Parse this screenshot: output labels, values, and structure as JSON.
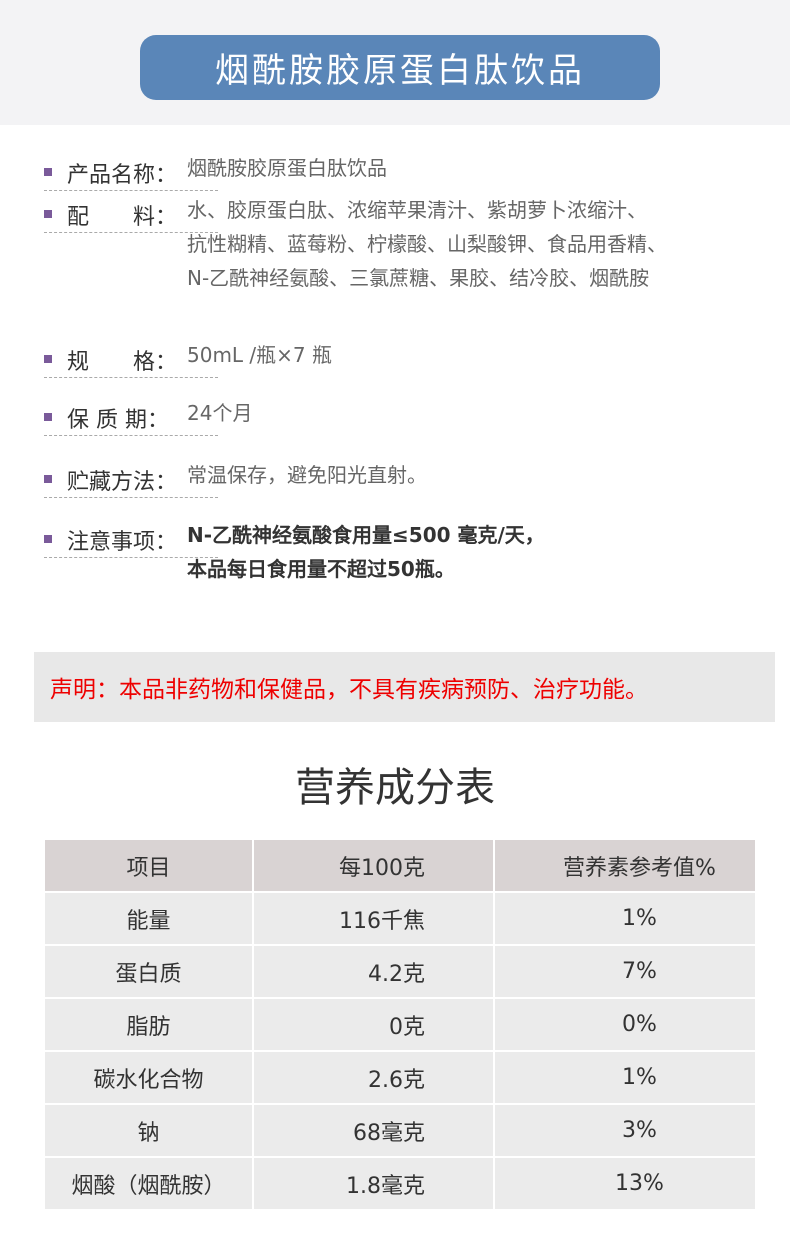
{
  "header": {
    "title": "烟酰胺胶原蛋白肽饮品"
  },
  "info": [
    {
      "label": "产品名称：",
      "lines": [
        "烟酰胺胶原蛋白肽饮品"
      ]
    },
    {
      "label": "配　　料：",
      "lines": [
        "水、胶原蛋白肽、浓缩苹果清汁、紫胡萝卜浓缩汁、",
        "抗性糊精、蓝莓粉、柠檬酸、山梨酸钾、食品用香精、",
        "N-乙酰神经氨酸、三氯蔗糖、果胶、结冷胶、烟酰胺"
      ]
    },
    {
      "label": "规　　格：",
      "lines": [
        "50mL /瓶×7 瓶"
      ]
    },
    {
      "label": "保 质 期：",
      "lines": [
        "24个月"
      ]
    },
    {
      "label": "贮藏方法：",
      "lines": [
        "常温保存，避免阳光直射。"
      ]
    },
    {
      "label": "注意事项：",
      "lines": [
        "N-乙酰神经氨酸食用量≤500 毫克/天，",
        "本品每日食用量不超过50瓶。"
      ]
    }
  ],
  "statement": "声明：本品非药物和保健品，不具有疾病预防、治疗功能。",
  "table": {
    "title": "营养成分表",
    "header": [
      "项目",
      "每100克",
      "营养素参考值%"
    ],
    "rows": [
      [
        "能量",
        "116千焦",
        "1%"
      ],
      [
        "蛋白质",
        "4.2克",
        "7%"
      ],
      [
        "脂肪",
        "0克",
        "0%"
      ],
      [
        "碳水化合物",
        "2.6克",
        "1%"
      ],
      [
        "钠",
        "68毫克",
        "3%"
      ],
      [
        "烟酸（烟酰胺）",
        "1.8毫克",
        "13%"
      ]
    ]
  }
}
